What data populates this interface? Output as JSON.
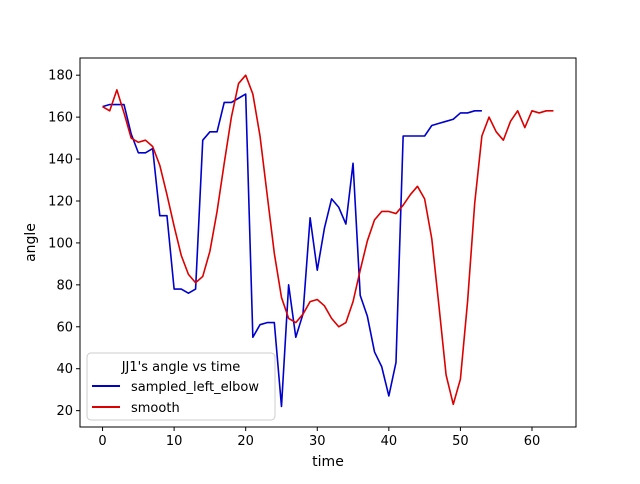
{
  "chart_data": {
    "type": "line",
    "xlabel": "time",
    "ylabel": "angle",
    "xlim": [
      -3.15,
      66.15
    ],
    "ylim": [
      12.2,
      188.2
    ],
    "xticks": [
      0,
      10,
      20,
      30,
      40,
      50,
      60
    ],
    "yticks": [
      20,
      40,
      60,
      80,
      100,
      120,
      140,
      160,
      180
    ],
    "legend": {
      "title": "JJ1's angle vs time",
      "placement": "lower-left"
    },
    "series": [
      {
        "name": "sampled_left_elbow",
        "color": "#0000cc",
        "x": [
          0,
          1,
          2,
          3,
          4,
          5,
          6,
          7,
          8,
          9,
          10,
          11,
          12,
          13,
          14,
          15,
          16,
          17,
          18,
          19,
          20,
          21,
          22,
          23,
          24,
          25,
          26,
          27,
          28,
          29,
          30,
          31,
          32,
          33,
          34,
          35,
          36,
          37,
          38,
          39,
          40,
          41,
          42,
          43,
          44,
          45,
          46,
          47,
          48,
          49,
          50,
          51,
          52,
          53
        ],
        "y": [
          165,
          166,
          166,
          166,
          152,
          143,
          143,
          145,
          113,
          113,
          78,
          78,
          76,
          78,
          149,
          153,
          153,
          167,
          167,
          169,
          171,
          55,
          61,
          62,
          62,
          22,
          80,
          55,
          66,
          112,
          87,
          107,
          121,
          117,
          109,
          138,
          75,
          65,
          48,
          41,
          27,
          43,
          151,
          151,
          151,
          151,
          156,
          157,
          158,
          159,
          162,
          162,
          163,
          163
        ]
      },
      {
        "name": "smooth",
        "color": "#dd0000",
        "x": [
          0,
          1,
          2,
          3,
          4,
          5,
          6,
          7,
          8,
          9,
          10,
          11,
          12,
          13,
          14,
          15,
          16,
          17,
          18,
          19,
          20,
          21,
          22,
          23,
          24,
          25,
          26,
          27,
          28,
          29,
          30,
          31,
          32,
          33,
          34,
          35,
          36,
          37,
          38,
          39,
          40,
          41,
          42,
          43,
          44,
          45,
          46,
          47,
          48,
          49,
          50,
          51,
          52,
          53,
          54,
          55,
          56,
          57,
          58,
          59,
          60,
          61,
          62,
          63
        ],
        "y": [
          165,
          163,
          173,
          162,
          150,
          148,
          149,
          146,
          137,
          123,
          108,
          94,
          85,
          81,
          84,
          96,
          115,
          138,
          160,
          176,
          180,
          171,
          151,
          123,
          95,
          74,
          64,
          62,
          66,
          72,
          73,
          70,
          64,
          60,
          62,
          72,
          87,
          101,
          111,
          115,
          115,
          114,
          118,
          123,
          127,
          121,
          102,
          70,
          37,
          23,
          35,
          72,
          119,
          151,
          160,
          153,
          149,
          158,
          163,
          155,
          163,
          162,
          163,
          163
        ]
      }
    ]
  }
}
